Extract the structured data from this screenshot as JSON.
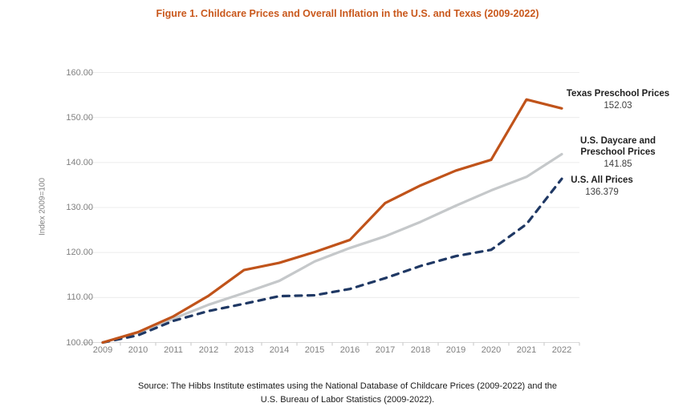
{
  "title": "Figure 1. Childcare Prices and Overall Inflation in the U.S. and Texas (2009-2022)",
  "source": {
    "line1": "Source: The Hibbs Institute estimates using the National Database of Childcare Prices (2009-2022) and the",
    "line2": "U.S. Bureau of Labor Statistics (2009-2022)."
  },
  "colors": {
    "title_orange": "#C9581C",
    "texas_line": "#C0531A",
    "us_daycare_line": "#C5C8CA",
    "us_all_line": "#1F3864",
    "gridline": "#ECECEC",
    "axis_line": "#D9D9D9",
    "tick_mark": "#C6C6C6",
    "tick_text": "#808080"
  },
  "chart_data": {
    "type": "line",
    "title": "Figure 1. Childcare Prices and Overall Inflation in the U.S. and Texas (2009-2022)",
    "xlabel": "",
    "ylabel": "Index 2009=100",
    "ylim": [
      100,
      160
    ],
    "ytick_labels": [
      "100.00",
      "110.00",
      "120.00",
      "130.00",
      "140.00",
      "150.00",
      "160.00"
    ],
    "grid": "horizontal",
    "legend_position": "right-end-annotations",
    "categories": [
      "2009",
      "2010",
      "2011",
      "2012",
      "2013",
      "2014",
      "2015",
      "2016",
      "2017",
      "2018",
      "2019",
      "2020",
      "2021",
      "2022"
    ],
    "series": [
      {
        "name": "Texas Preschool Prices",
        "style": "solid",
        "color": "#C0531A",
        "end_label": "152.03",
        "values": [
          100,
          102.3,
          105.8,
          110.4,
          116.1,
          117.7,
          120.1,
          122.8,
          131.0,
          134.9,
          138.2,
          140.6,
          154.0,
          152.03
        ]
      },
      {
        "name": "U.S. Daycare and Preschool Prices",
        "style": "solid",
        "color": "#C5C8CA",
        "end_label": "141.85",
        "values": [
          100,
          102.2,
          105.3,
          108.4,
          111.0,
          113.7,
          118.0,
          121.0,
          123.6,
          126.8,
          130.4,
          133.8,
          136.8,
          141.85
        ]
      },
      {
        "name": "U.S. All Prices",
        "style": "dashed",
        "color": "#1F3864",
        "end_label": "136.379",
        "values": [
          100,
          101.6,
          104.8,
          107.0,
          108.6,
          110.3,
          110.5,
          111.9,
          114.3,
          117.0,
          119.2,
          120.6,
          126.3,
          136.379
        ]
      }
    ]
  }
}
